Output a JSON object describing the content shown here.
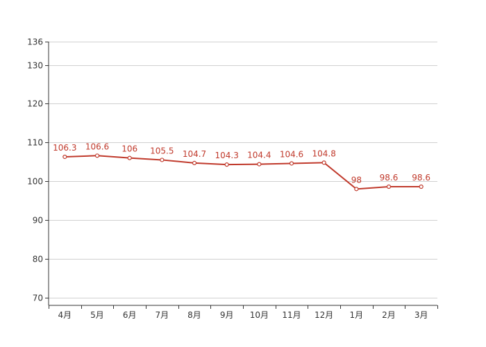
{
  "chart_data": {
    "type": "line",
    "categories": [
      "4月",
      "5月",
      "6月",
      "7月",
      "8月",
      "9月",
      "10月",
      "11月",
      "12月",
      "1月",
      "2月",
      "3月"
    ],
    "series": [
      {
        "values": [
          106.3,
          106.6,
          106,
          105.5,
          104.7,
          104.3,
          104.4,
          104.6,
          104.8,
          98,
          98.6,
          98.6
        ]
      }
    ],
    "ylim": [
      68,
      136
    ],
    "yticks": [
      70,
      80,
      90,
      100,
      110,
      120,
      130,
      136
    ],
    "grid": true,
    "data_labels": true,
    "series_color": "#c0392b"
  }
}
